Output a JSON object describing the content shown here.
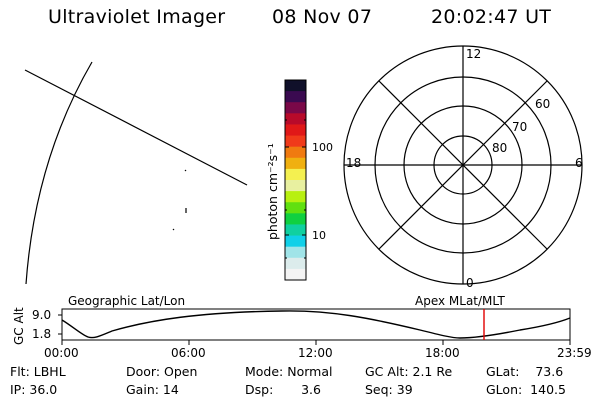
{
  "header": {
    "instrument": "Ultraviolet Imager",
    "date": "08 Nov 07",
    "time": "20:02:47 UT"
  },
  "colorbar": {
    "label": "photon cm⁻²s⁻¹",
    "ticks": [
      {
        "value": "100"
      },
      {
        "value": "10"
      }
    ],
    "colors": [
      "#10102a",
      "#3a0a50",
      "#7a0848",
      "#b80a2a",
      "#e01818",
      "#f03a1a",
      "#f07a10",
      "#f0b010",
      "#f4f050",
      "#e8f0a0",
      "#b8f010",
      "#60e010",
      "#10d040",
      "#10d0a0",
      "#10d0e8",
      "#a0e4e8",
      "#dcecec",
      "#f4f4f4"
    ]
  },
  "polar": {
    "mlt_labels": {
      "top": "12",
      "left": "18",
      "right": "6",
      "bottom": "0"
    },
    "lat_labels": [
      "60",
      "70",
      "80"
    ]
  },
  "timeline": {
    "ylabel": "GC Alt",
    "ytick_top": "9.0",
    "ytick_bottom": "1.8",
    "left_caption": "Geographic Lat/Lon",
    "right_caption": "Apex  MLat/MLT",
    "xticks": [
      "00:00",
      "06:00",
      "12:00",
      "18:00",
      "23:59"
    ],
    "marker_color": "#e00000"
  },
  "status": {
    "flt": "Flt:  LBHL",
    "ip": "IP:  36.0",
    "door": "Door:  Open",
    "gain": "Gain:  14",
    "mode": "Mode:  Normal",
    "dsp": "Dsp:       3.6",
    "gc_alt": "GC Alt:  2.1 Re",
    "seq": "Seq:  39",
    "glat": "GLat:    73.6",
    "glon": "GLon:  140.5"
  }
}
